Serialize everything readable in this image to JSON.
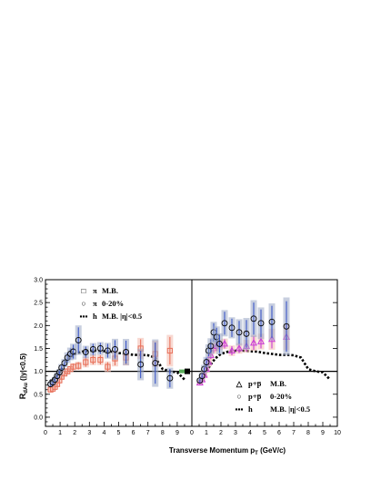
{
  "chart_data": {
    "type": "scatter",
    "xlabel": "Transverse Momentum p",
    "xlabel_sub": "T",
    "xlabel_unit": " (GeV/c)",
    "ylabel": "R",
    "ylabel_sub": "dAu",
    "ylabel_rest": " (|y|<0.5)",
    "ylim": [
      -0.2,
      3.0
    ],
    "yticks": [
      "0.0",
      "0.5",
      "1.0",
      "1.5",
      "2.0",
      "2.5",
      "3.0"
    ],
    "left_xticks": [
      "0",
      "1",
      "2",
      "3",
      "4",
      "5",
      "6",
      "7",
      "8",
      "9"
    ],
    "right_xticks": [
      "0",
      "1",
      "2",
      "3",
      "4",
      "5",
      "6",
      "7",
      "8",
      "9",
      "10"
    ],
    "panels": [
      {
        "xlim": [
          0,
          10
        ],
        "legend": [
          {
            "symbol": "□",
            "particle": "π",
            "centrality": "M.B."
          },
          {
            "symbol": "○",
            "particle": "π",
            "centrality": "0-20%"
          },
          {
            "symbol": "▪▪▪",
            "particle": "h",
            "centrality": "M.B. |η|<0.5"
          }
        ],
        "series": [
          {
            "marker": "square",
            "color": "#e8705a",
            "x": [
              0.35,
              0.5,
              0.65,
              0.8,
              0.95,
              1.1,
              1.3,
              1.5,
              1.7,
              1.9,
              2.25,
              2.75,
              3.25,
              3.75,
              4.25,
              4.75,
              5.5,
              6.5,
              7.5,
              8.5
            ],
            "y": [
              0.6,
              0.62,
              0.66,
              0.72,
              0.8,
              0.88,
              0.95,
              1.0,
              1.05,
              1.1,
              1.12,
              1.2,
              1.25,
              1.25,
              1.1,
              1.28,
              1.3,
              1.5,
              1.38,
              1.45
            ],
            "err": [
              0.04,
              0.04,
              0.04,
              0.05,
              0.05,
              0.05,
              0.05,
              0.06,
              0.06,
              0.07,
              0.08,
              0.1,
              0.1,
              0.1,
              0.1,
              0.15,
              0.15,
              0.2,
              0.25,
              0.3
            ]
          },
          {
            "marker": "circle",
            "color": "#3a55c8",
            "x": [
              0.35,
              0.5,
              0.65,
              0.8,
              0.95,
              1.1,
              1.3,
              1.5,
              1.7,
              1.9,
              2.25,
              2.75,
              3.25,
              3.75,
              4.25,
              4.75,
              5.5,
              6.5,
              7.5,
              8.5
            ],
            "y": [
              0.72,
              0.76,
              0.82,
              0.9,
              0.98,
              1.08,
              1.18,
              1.3,
              1.38,
              1.43,
              1.68,
              1.42,
              1.48,
              1.5,
              1.45,
              1.48,
              1.42,
              1.15,
              1.18,
              0.85
            ],
            "err": [
              0.05,
              0.05,
              0.05,
              0.06,
              0.06,
              0.07,
              0.08,
              0.1,
              0.12,
              0.15,
              0.28,
              0.12,
              0.12,
              0.12,
              0.15,
              0.2,
              0.25,
              0.3,
              0.45,
              0.2
            ]
          }
        ],
        "hline": {
          "x": [
            0.3,
            0.7,
            1.0,
            1.3,
            1.6,
            2.0,
            2.5,
            3.0,
            3.5,
            4.0,
            4.5,
            5.0,
            5.5,
            6.0,
            6.5,
            7.0,
            7.5,
            8.0,
            8.5,
            9.0,
            9.5
          ],
          "y": [
            0.78,
            0.88,
            1.0,
            1.15,
            1.28,
            1.38,
            1.43,
            1.45,
            1.45,
            1.44,
            1.43,
            1.4,
            1.38,
            1.36,
            1.36,
            1.35,
            1.3,
            1.05,
            1.0,
            0.98,
            0.82
          ]
        }
      },
      {
        "xlim": [
          0,
          10
        ],
        "legend": [
          {
            "symbol": "△",
            "particle": "p+p̅",
            "centrality": "M.B."
          },
          {
            "symbol": "○",
            "particle": "p+p̅",
            "centrality": "0-20%"
          },
          {
            "symbol": "▪▪▪",
            "particle": "h",
            "centrality": "M.B. |η|<0.5"
          }
        ],
        "series": [
          {
            "marker": "triangle",
            "color": "#c93cd6",
            "x": [
              0.55,
              0.7,
              0.85,
              1.0,
              1.15,
              1.3,
              1.5,
              1.7,
              1.9,
              2.25,
              2.75,
              3.25,
              3.75,
              4.25,
              4.75,
              5.5,
              6.5
            ],
            "y": [
              0.75,
              0.82,
              0.92,
              1.05,
              1.2,
              1.35,
              1.5,
              1.55,
              1.58,
              1.6,
              1.45,
              1.5,
              1.55,
              1.62,
              1.65,
              1.7,
              1.75
            ],
            "err": [
              0.05,
              0.05,
              0.06,
              0.07,
              0.08,
              0.08,
              0.1,
              0.1,
              0.1,
              0.1,
              0.1,
              0.1,
              0.12,
              0.15,
              0.15,
              0.2,
              0.25
            ]
          },
          {
            "marker": "circle",
            "color": "#3a55c8",
            "x": [
              0.55,
              0.7,
              0.85,
              1.0,
              1.15,
              1.3,
              1.5,
              1.7,
              1.9,
              2.25,
              2.75,
              3.25,
              3.75,
              4.25,
              4.75,
              5.5,
              6.5
            ],
            "y": [
              0.8,
              0.9,
              1.05,
              1.2,
              1.45,
              1.55,
              1.85,
              1.75,
              1.6,
              2.05,
              1.95,
              1.85,
              1.82,
              2.15,
              2.05,
              2.08,
              1.98
            ],
            "err": [
              0.05,
              0.06,
              0.08,
              0.1,
              0.12,
              0.15,
              0.2,
              0.2,
              0.2,
              0.25,
              0.2,
              0.25,
              0.3,
              0.35,
              0.3,
              0.35,
              0.55
            ]
          }
        ],
        "hline": {
          "x": [
            0.5,
            0.8,
            1.0,
            1.3,
            1.6,
            2.0,
            2.5,
            3.0,
            3.5,
            4.0,
            4.5,
            5.0,
            5.5,
            6.0,
            6.5,
            7.0,
            7.5,
            8.0,
            8.5,
            9.0,
            9.5
          ],
          "y": [
            0.78,
            0.9,
            1.0,
            1.15,
            1.28,
            1.38,
            1.43,
            1.45,
            1.45,
            1.44,
            1.43,
            1.4,
            1.38,
            1.36,
            1.36,
            1.35,
            1.3,
            1.05,
            1.0,
            0.98,
            0.82
          ]
        }
      }
    ]
  }
}
